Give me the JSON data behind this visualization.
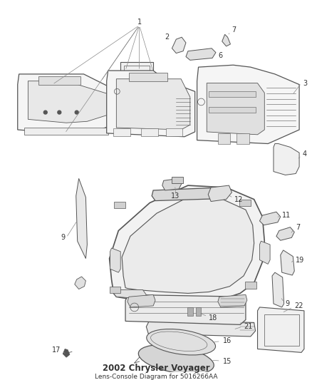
{
  "title": "2002 Chrysler Voyager",
  "subtitle": "Lens-Console",
  "part_number": "Diagram for 5016266AA",
  "bg_color": "#ffffff",
  "line_color": "#555555",
  "text_color": "#333333",
  "title_fontsize": 8.5,
  "label_fontsize": 7,
  "fig_width": 4.38,
  "fig_height": 5.33,
  "dpi": 100
}
